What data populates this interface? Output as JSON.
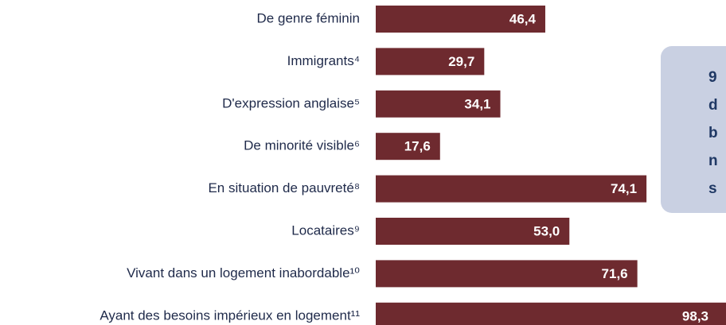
{
  "chart_data": {
    "type": "barh",
    "categories": [
      "De genre féminin",
      "Immigrants⁴",
      "D'expression anglaise⁵",
      "De minorité visible⁶",
      "En situation de pauvreté⁸",
      "Locataires⁹",
      "Vivant dans un logement inabordable¹⁰",
      "Ayant des besoins impérieux en logement¹¹"
    ],
    "values": [
      46.4,
      29.7,
      34.1,
      17.6,
      74.1,
      53.0,
      71.6,
      98.3
    ],
    "value_labels": [
      "46,4",
      "29,7",
      "34,1",
      "17,6",
      "74,1",
      "53,0",
      "71,6",
      "98,3"
    ],
    "color": "#6e2a2f",
    "xlim": [
      0,
      100
    ],
    "annotation_lines": [
      "9",
      "d",
      "b",
      "n",
      "s"
    ]
  }
}
